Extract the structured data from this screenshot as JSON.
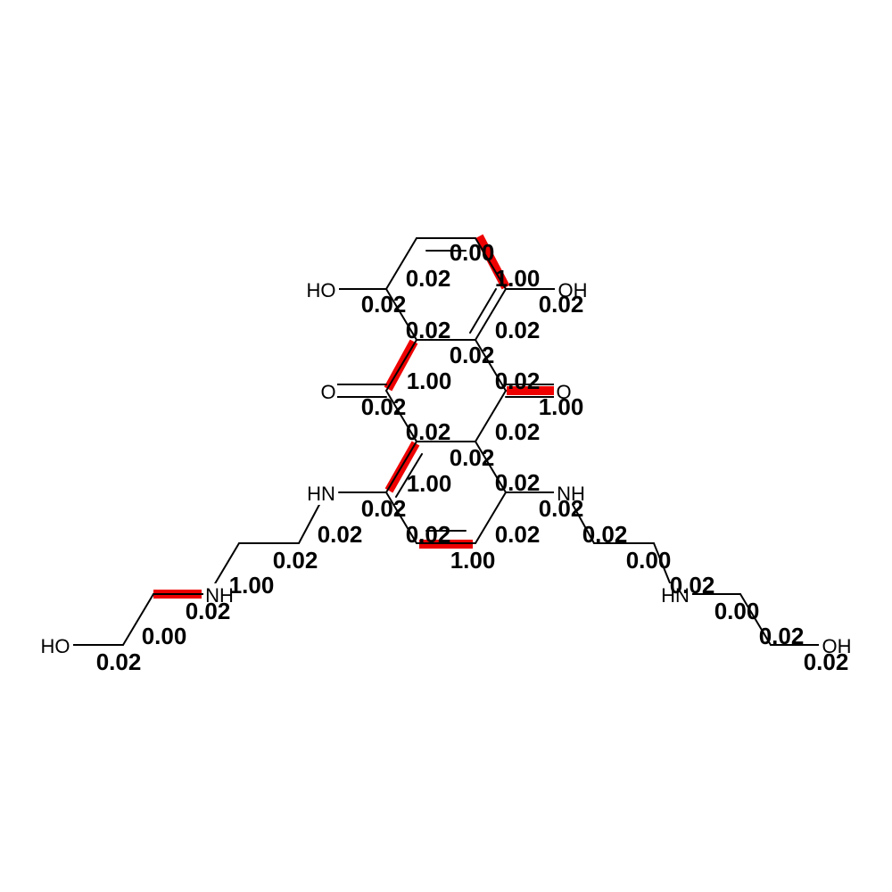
{
  "colors": {
    "bond": "#000000",
    "highlight": "#ee0000",
    "background": "#ffffff"
  },
  "atoms": [
    "HO",
    "OH",
    "O",
    "O",
    "HN",
    "NH",
    "NH",
    "HN",
    "HO",
    "OH"
  ],
  "bond_weights": [
    "0.00",
    "0.02",
    "1.00",
    "0.02",
    "0.02",
    "0.02",
    "0.02",
    "0.02",
    "1.00",
    "0.02",
    "0.02",
    "1.00",
    "0.02",
    "0.02",
    "0.02",
    "0.02",
    "1.00",
    "0.02",
    "0.02",
    "0.02",
    "0.02",
    "0.02",
    "1.00",
    "0.02",
    "0.02",
    "0.00",
    "1.00",
    "0.02",
    "0.02",
    "0.00",
    "0.00",
    "0.02",
    "0.02",
    "0.02",
    "0.02"
  ]
}
